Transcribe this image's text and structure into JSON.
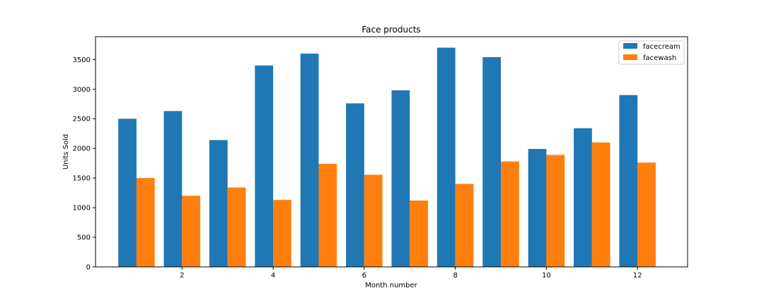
{
  "chart_data": {
    "type": "bar",
    "title": "Face products",
    "xlabel": "Month number",
    "ylabel": "Units Sold",
    "x": [
      1,
      2,
      3,
      4,
      5,
      6,
      7,
      8,
      9,
      10,
      11,
      12
    ],
    "xticks": [
      2,
      4,
      6,
      8,
      10,
      12
    ],
    "yticks": [
      0,
      500,
      1000,
      1500,
      2000,
      2500,
      3000,
      3500
    ],
    "xlim": [
      0.1,
      13.1
    ],
    "ylim": [
      0,
      3885
    ],
    "grid": false,
    "legend_position": "top-right",
    "series": [
      {
        "name": "facecream",
        "color": "#1f77b4",
        "values": [
          2500,
          2630,
          2140,
          3400,
          3600,
          2760,
          2980,
          3700,
          3540,
          1990,
          2340,
          2900
        ]
      },
      {
        "name": "facewash",
        "color": "#ff7f0e",
        "values": [
          1500,
          1200,
          1340,
          1130,
          1740,
          1555,
          1120,
          1400,
          1780,
          1890,
          2100,
          1760
        ]
      }
    ]
  }
}
